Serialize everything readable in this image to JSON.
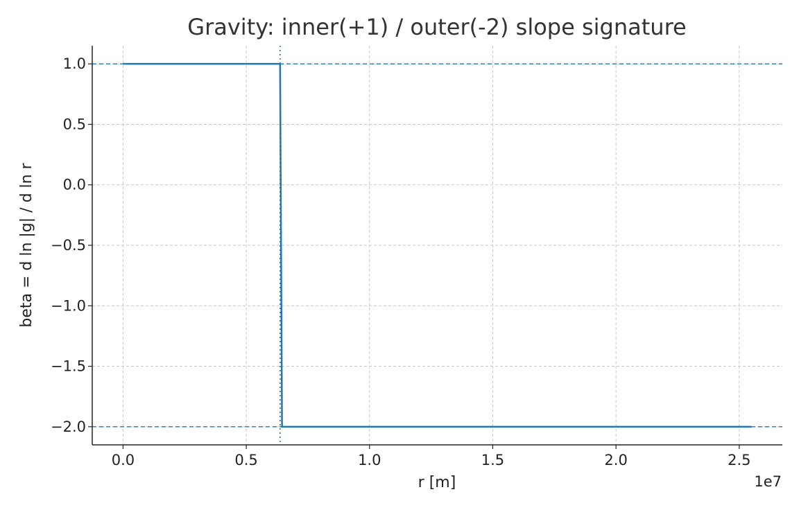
{
  "chart_data": {
    "type": "line",
    "title": "Gravity: inner(+1) / outer(-2) slope signature",
    "xlabel": "r [m]",
    "ylabel": "beta = d ln |g| / d ln r",
    "x_offset_label": "1e7",
    "x_scale": 10000000,
    "xlim": [
      -1250000,
      26750000
    ],
    "ylim": [
      -2.15,
      1.15
    ],
    "grid": true,
    "xticks": [
      {
        "value": 0,
        "label": "0.0"
      },
      {
        "value": 5000000,
        "label": "0.5"
      },
      {
        "value": 10000000,
        "label": "1.0"
      },
      {
        "value": 15000000,
        "label": "1.5"
      },
      {
        "value": 20000000,
        "label": "2.0"
      },
      {
        "value": 25000000,
        "label": "2.5"
      }
    ],
    "yticks": [
      {
        "value": 1.0,
        "label": "1.0"
      },
      {
        "value": 0.5,
        "label": "0.5"
      },
      {
        "value": 0.0,
        "label": "0.0"
      },
      {
        "value": -0.5,
        "label": "−0.5"
      },
      {
        "value": -1.0,
        "label": "−1.0"
      },
      {
        "value": -1.5,
        "label": "−1.5"
      },
      {
        "value": -2.0,
        "label": "−2.0"
      }
    ],
    "series": [
      {
        "name": "beta",
        "color": "#1f77b4",
        "x": [
          0,
          6371000,
          6450000,
          25500000
        ],
        "y": [
          1.0,
          1.0,
          -2.0,
          -2.0
        ]
      }
    ],
    "reference_lines": [
      {
        "orientation": "horizontal",
        "value": 1.0,
        "color": "#1f77b4",
        "style": "dashed"
      },
      {
        "orientation": "horizontal",
        "value": -2.0,
        "color": "#1f77b4",
        "style": "dashed"
      },
      {
        "orientation": "vertical",
        "value": 6371000,
        "color": "#1f77b4",
        "style": "dotted"
      }
    ]
  }
}
